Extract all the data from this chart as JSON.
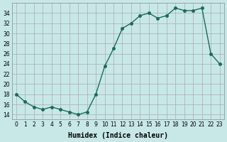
{
  "x": [
    0,
    1,
    2,
    3,
    4,
    5,
    6,
    7,
    8,
    9,
    10,
    11,
    12,
    13,
    14,
    15,
    16,
    17,
    18,
    19,
    20,
    21,
    22,
    23
  ],
  "y": [
    18,
    16.5,
    15.5,
    15,
    15.5,
    15,
    14.5,
    14,
    14.5,
    18,
    23.5,
    27,
    31,
    32,
    33.5,
    34,
    33,
    33.5,
    35,
    34.5,
    34.5,
    35,
    26,
    24
  ],
  "xlabel": "Humidex (Indice chaleur)",
  "ylabel": "",
  "xlim": [
    -0.5,
    23.5
  ],
  "ylim": [
    13,
    36
  ],
  "yticks": [
    14,
    16,
    18,
    20,
    22,
    24,
    26,
    28,
    30,
    32,
    34
  ],
  "xticks": [
    0,
    1,
    2,
    3,
    4,
    5,
    6,
    7,
    8,
    9,
    10,
    11,
    12,
    13,
    14,
    15,
    16,
    17,
    18,
    19,
    20,
    21,
    22,
    23
  ],
  "line_color": "#1a6b5a",
  "marker_color": "#1a6b5a",
  "bg_color": "#c8e8e8",
  "grid_color": "#aaaaaa"
}
